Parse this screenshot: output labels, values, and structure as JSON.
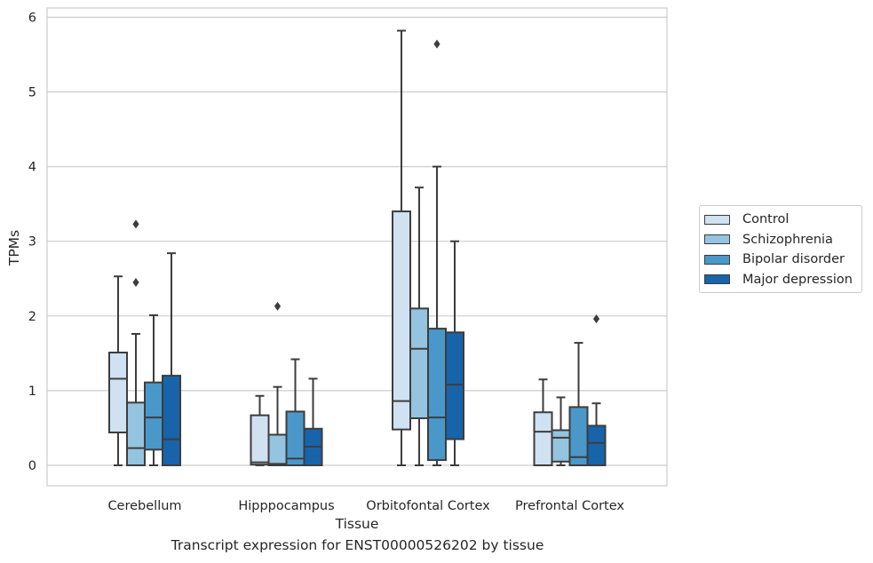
{
  "chart_data": {
    "type": "boxplot",
    "xlabel": "Tissue",
    "ylabel": "TPMs",
    "caption": "Transcript expression for ENST00000526202 by tissue",
    "ylim": [
      -0.28,
      6.12
    ],
    "yticks": [
      0,
      1,
      2,
      3,
      4,
      5,
      6
    ],
    "grid": true,
    "legend_position": "right",
    "categories": [
      "Cerebellum",
      "Hipppocampus",
      "Orbitofontal Cortex",
      "Prefrontal Cortex"
    ],
    "series": [
      {
        "name": "Control",
        "color": "#d0e1f2",
        "boxes": [
          {
            "whisker_low": 0.0,
            "q1": 0.44,
            "median": 1.16,
            "q3": 1.51,
            "whisker_high": 2.53,
            "outliers": []
          },
          {
            "whisker_low": 0.0,
            "q1": 0.01,
            "median": 0.04,
            "q3": 0.67,
            "whisker_high": 0.93,
            "outliers": []
          },
          {
            "whisker_low": 0.0,
            "q1": 0.48,
            "median": 0.86,
            "q3": 3.4,
            "whisker_high": 5.82,
            "outliers": []
          },
          {
            "whisker_low": 0.0,
            "q1": 0.0,
            "median": 0.45,
            "q3": 0.71,
            "whisker_high": 1.15,
            "outliers": []
          }
        ]
      },
      {
        "name": "Schizophrenia",
        "color": "#94c4df",
        "boxes": [
          {
            "whisker_low": 0.0,
            "q1": 0.0,
            "median": 0.23,
            "q3": 0.84,
            "whisker_high": 1.76,
            "outliers": [
              2.45,
              3.23
            ]
          },
          {
            "whisker_low": 0.0,
            "q1": 0.0,
            "median": 0.02,
            "q3": 0.41,
            "whisker_high": 1.05,
            "outliers": [
              2.13
            ]
          },
          {
            "whisker_low": 0.0,
            "q1": 0.63,
            "median": 1.56,
            "q3": 2.1,
            "whisker_high": 3.72,
            "outliers": []
          },
          {
            "whisker_low": 0.0,
            "q1": 0.05,
            "median": 0.37,
            "q3": 0.47,
            "whisker_high": 0.91,
            "outliers": []
          }
        ]
      },
      {
        "name": "Bipolar disorder",
        "color": "#4a98c9",
        "boxes": [
          {
            "whisker_low": 0.0,
            "q1": 0.21,
            "median": 0.64,
            "q3": 1.11,
            "whisker_high": 2.01,
            "outliers": []
          },
          {
            "whisker_low": 0.0,
            "q1": 0.0,
            "median": 0.09,
            "q3": 0.72,
            "whisker_high": 1.42,
            "outliers": []
          },
          {
            "whisker_low": 0.0,
            "q1": 0.07,
            "median": 0.64,
            "q3": 1.83,
            "whisker_high": 4.0,
            "outliers": [
              5.64
            ]
          },
          {
            "whisker_low": 0.0,
            "q1": 0.0,
            "median": 0.11,
            "q3": 0.78,
            "whisker_high": 1.64,
            "outliers": []
          }
        ]
      },
      {
        "name": "Major depression",
        "color": "#1764ab",
        "boxes": [
          {
            "whisker_low": 0.0,
            "q1": 0.0,
            "median": 0.35,
            "q3": 1.2,
            "whisker_high": 2.84,
            "outliers": []
          },
          {
            "whisker_low": 0.0,
            "q1": 0.0,
            "median": 0.25,
            "q3": 0.49,
            "whisker_high": 1.16,
            "outliers": []
          },
          {
            "whisker_low": 0.0,
            "q1": 0.35,
            "median": 1.08,
            "q3": 1.78,
            "whisker_high": 3.0,
            "outliers": []
          },
          {
            "whisker_low": 0.0,
            "q1": 0.0,
            "median": 0.3,
            "q3": 0.53,
            "whisker_high": 0.83,
            "outliers": [
              1.96
            ]
          }
        ]
      }
    ]
  }
}
